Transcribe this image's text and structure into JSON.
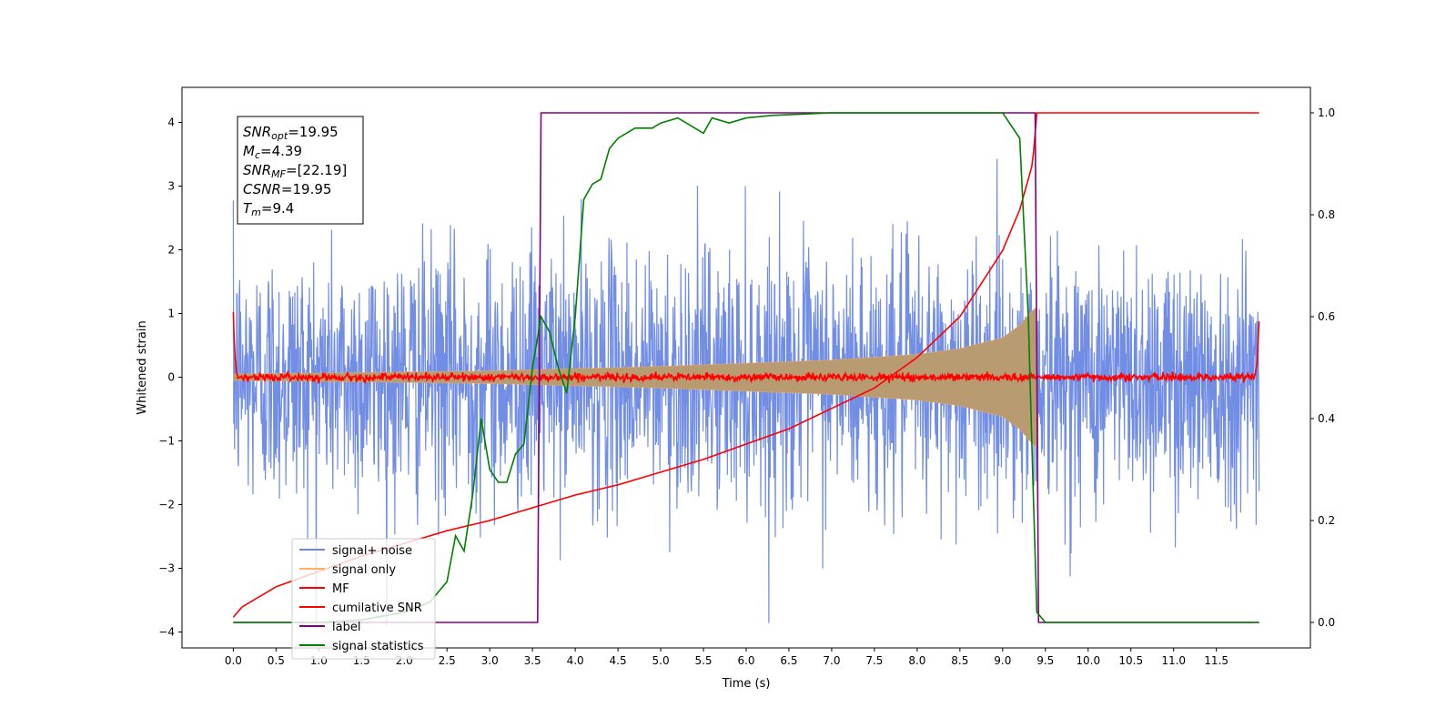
{
  "chart_data": {
    "type": "line",
    "xlabel": "Time (s)",
    "ylabel": "Whitened strain",
    "xlim": [
      -0.6,
      12.6
    ],
    "ylim": [
      -4.25,
      4.55
    ],
    "y2lim": [
      -0.05,
      1.05
    ],
    "xticks": [
      0.0,
      0.5,
      1.0,
      1.5,
      2.0,
      2.5,
      3.0,
      3.5,
      4.0,
      4.5,
      5.0,
      5.5,
      6.0,
      6.5,
      7.0,
      7.5,
      8.0,
      8.5,
      9.0,
      9.5,
      10.0,
      10.5,
      11.0,
      11.5
    ],
    "xtick_labels": [
      "0.0",
      "0.5",
      "1.0",
      "1.5",
      "2.0",
      "2.5",
      "3.0",
      "3.5",
      "4.0",
      "4.5",
      "5.0",
      "5.5",
      "6.0",
      "6.5",
      "7.0",
      "7.5",
      "8.0",
      "8.5",
      "9.0",
      "9.5",
      "10.0",
      "10.5",
      "11.0",
      "11.5"
    ],
    "yticks": [
      -4,
      -3,
      -2,
      -1,
      0,
      1,
      2,
      3,
      4
    ],
    "ytick_labels": [
      "−4",
      "−3",
      "−2",
      "−1",
      "0",
      "1",
      "2",
      "3",
      "4"
    ],
    "y2ticks": [
      0.0,
      0.2,
      0.4,
      0.6,
      0.8,
      1.0
    ],
    "y2tick_labels": [
      "0.0",
      "0.2",
      "0.4",
      "0.6",
      "0.8",
      "1.0"
    ],
    "grid": false,
    "legend_position": "bottom-left",
    "annotation": {
      "position": "top-left",
      "lines": [
        {
          "base": "SNR",
          "sub": "opt",
          "value": "=19.95"
        },
        {
          "base": "M",
          "sub": "c",
          "value": "=4.39"
        },
        {
          "base": "SNR",
          "sub": "MF",
          "value": "=[22.19]"
        },
        {
          "base": "CSNR",
          "sub": "",
          "value": "=19.95"
        },
        {
          "base": "T",
          "sub": "m",
          "value": "=9.4"
        }
      ]
    },
    "series": [
      {
        "name": "signal+ noise",
        "axis": "left",
        "color": "#6a87e3",
        "kind": "noise",
        "x_range": [
          0.0,
          12.0
        ],
        "amplitude_std": 1.0
      },
      {
        "name": "signal only",
        "axis": "left",
        "color": "#ffb060",
        "kind": "chirp",
        "envelope": {
          "x": [
            0.0,
            3.0,
            5.0,
            7.0,
            8.0,
            8.5,
            9.0,
            9.2,
            9.35,
            9.4
          ],
          "y": [
            0.05,
            0.1,
            0.17,
            0.27,
            0.36,
            0.45,
            0.62,
            0.82,
            1.05,
            1.1
          ]
        }
      },
      {
        "name": "MF",
        "axis": "left",
        "color": "#ff0000",
        "kind": "mf",
        "x": [
          0.0,
          0.02,
          0.05,
          11.95,
          11.98,
          12.0
        ],
        "y": [
          1.0,
          0.3,
          0.0,
          0.0,
          0.3,
          0.95
        ],
        "noise_std": 0.03
      },
      {
        "name": "cumilative SNR",
        "axis": "right",
        "color": "#ff0000",
        "x": [
          0.0,
          0.1,
          0.5,
          1.0,
          1.5,
          2.0,
          2.5,
          3.0,
          3.5,
          4.0,
          4.5,
          5.0,
          5.5,
          6.0,
          6.5,
          7.0,
          7.5,
          8.0,
          8.5,
          9.0,
          9.2,
          9.35,
          9.4,
          12.0
        ],
        "y": [
          0.01,
          0.03,
          0.07,
          0.1,
          0.13,
          0.155,
          0.18,
          0.2,
          0.225,
          0.25,
          0.27,
          0.295,
          0.32,
          0.35,
          0.38,
          0.42,
          0.46,
          0.52,
          0.6,
          0.73,
          0.81,
          0.9,
          1.0,
          1.0
        ]
      },
      {
        "name": "label",
        "axis": "right",
        "color": "#800080",
        "x": [
          0.0,
          3.56,
          3.6,
          9.38,
          9.42,
          12.0
        ],
        "y": [
          0.0,
          0.0,
          1.0,
          1.0,
          0.0,
          0.0
        ]
      },
      {
        "name": "signal statistics",
        "axis": "right",
        "color": "#008000",
        "x": [
          0.0,
          0.5,
          1.0,
          1.5,
          2.0,
          2.3,
          2.5,
          2.6,
          2.7,
          2.8,
          2.9,
          3.0,
          3.1,
          3.2,
          3.3,
          3.4,
          3.5,
          3.6,
          3.7,
          3.8,
          3.9,
          4.0,
          4.1,
          4.2,
          4.3,
          4.4,
          4.5,
          4.7,
          4.9,
          5.0,
          5.2,
          5.5,
          5.6,
          5.8,
          6.0,
          6.3,
          7.0,
          7.5,
          8.0,
          8.5,
          9.0,
          9.2,
          9.3,
          9.35,
          9.4,
          9.5,
          12.0
        ],
        "y": [
          0.0,
          0.0,
          0.0,
          0.005,
          0.02,
          0.04,
          0.08,
          0.17,
          0.14,
          0.25,
          0.4,
          0.3,
          0.275,
          0.275,
          0.33,
          0.35,
          0.5,
          0.6,
          0.57,
          0.5,
          0.45,
          0.6,
          0.83,
          0.86,
          0.87,
          0.93,
          0.95,
          0.97,
          0.97,
          0.98,
          0.99,
          0.96,
          0.99,
          0.98,
          0.99,
          0.995,
          1.0,
          1.0,
          1.0,
          1.0,
          1.0,
          0.95,
          0.6,
          0.3,
          0.02,
          0.0,
          0.0
        ]
      }
    ]
  }
}
